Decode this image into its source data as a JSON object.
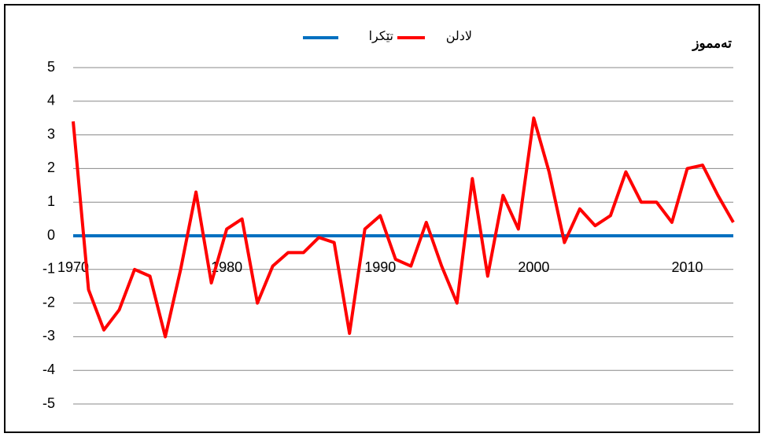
{
  "chart_data": {
    "type": "line",
    "title": "تەمموز",
    "x": [
      1970,
      1971,
      1972,
      1973,
      1974,
      1975,
      1976,
      1977,
      1978,
      1979,
      1980,
      1981,
      1982,
      1983,
      1984,
      1985,
      1986,
      1987,
      1988,
      1989,
      1990,
      1991,
      1992,
      1993,
      1994,
      1995,
      1996,
      1997,
      1998,
      1999,
      2000,
      2001,
      2002,
      2003,
      2004,
      2005,
      2006,
      2007,
      2008,
      2009,
      2010,
      2011,
      2012,
      2013
    ],
    "series": [
      {
        "name": "تێکرا",
        "color": "#0070c0",
        "values": [
          0,
          0,
          0,
          0,
          0,
          0,
          0,
          0,
          0,
          0,
          0,
          0,
          0,
          0,
          0,
          0,
          0,
          0,
          0,
          0,
          0,
          0,
          0,
          0,
          0,
          0,
          0,
          0,
          0,
          0,
          0,
          0,
          0,
          0,
          0,
          0,
          0,
          0,
          0,
          0,
          0,
          0,
          0,
          0
        ]
      },
      {
        "name": "لادلن",
        "color": "#ff0000",
        "values": [
          3.4,
          -1.6,
          -2.8,
          -2.2,
          -1.0,
          -1.2,
          -3.0,
          -1.0,
          1.3,
          -1.4,
          0.2,
          0.5,
          -2.0,
          -0.9,
          -0.5,
          -0.5,
          -0.05,
          -0.2,
          -2.9,
          0.2,
          0.6,
          -0.7,
          -0.9,
          0.4,
          -0.9,
          -2.0,
          1.7,
          -1.2,
          1.2,
          0.2,
          3.5,
          1.9,
          -0.2,
          0.8,
          0.3,
          0.6,
          1.9,
          1.0,
          1.0,
          0.4,
          2.0,
          2.1,
          1.2,
          0.4
        ]
      }
    ],
    "xlim": [
      1970,
      2013
    ],
    "xticks": [
      1970,
      1980,
      1990,
      2000,
      2010
    ],
    "ylim": [
      -5,
      5
    ],
    "yticks": [
      -5,
      -4,
      -3,
      -2,
      -1,
      0,
      1,
      2,
      3,
      4,
      5
    ],
    "grid": true,
    "legend": "top"
  }
}
